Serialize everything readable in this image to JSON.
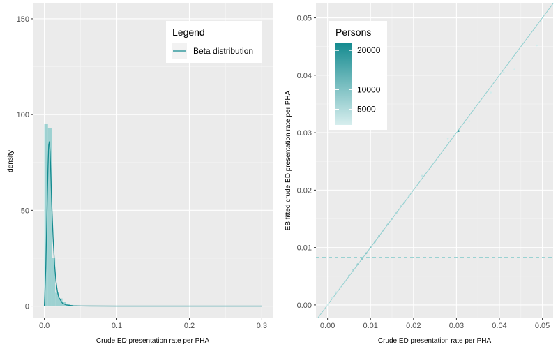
{
  "chart_data": [
    {
      "type": "histogram",
      "xlabel": "Crude ED presentation rate per PHA",
      "ylabel": "density",
      "xlim": [
        -0.015,
        0.315
      ],
      "ylim": [
        -6,
        158
      ],
      "xticks": [
        0.0,
        0.1,
        0.2,
        0.3
      ],
      "xtick_labels": [
        "0.0",
        "0.1",
        "0.2",
        "0.3"
      ],
      "yticks": [
        0,
        50,
        100,
        150
      ],
      "ytick_labels": [
        "0",
        "50",
        "100",
        "150"
      ],
      "grid": true,
      "bin_width": 0.005,
      "bins": [
        {
          "x0": 0.0,
          "x1": 0.005,
          "density": 95
        },
        {
          "x0": 0.005,
          "x1": 0.01,
          "density": 93
        },
        {
          "x0": 0.01,
          "x1": 0.015,
          "density": 25
        },
        {
          "x0": 0.015,
          "x1": 0.02,
          "density": 7
        },
        {
          "x0": 0.02,
          "x1": 0.025,
          "density": 4
        },
        {
          "x0": 0.025,
          "x1": 0.03,
          "density": 2
        },
        {
          "x0": 0.03,
          "x1": 0.035,
          "density": 1
        },
        {
          "x0": 0.035,
          "x1": 0.04,
          "density": 0.6
        },
        {
          "x0": 0.04,
          "x1": 0.045,
          "density": 0.4
        },
        {
          "x0": 0.045,
          "x1": 0.05,
          "density": 0.3
        }
      ],
      "series": [
        {
          "name": "Beta distribution",
          "x": [
            0.0,
            0.002,
            0.004,
            0.005,
            0.006,
            0.007,
            0.008,
            0.009,
            0.01,
            0.012,
            0.014,
            0.016,
            0.018,
            0.02,
            0.025,
            0.03,
            0.04,
            0.05,
            0.1,
            0.2,
            0.3
          ],
          "y": [
            0,
            20,
            55,
            72,
            84,
            86,
            80,
            68,
            55,
            36,
            22,
            13,
            7.5,
            4.5,
            1.5,
            0.6,
            0.15,
            0.05,
            0,
            0,
            0
          ]
        }
      ],
      "legend": {
        "title": "Legend",
        "position": "top-right"
      },
      "colors": {
        "line": "#138a8f",
        "bar": "#9dd1d1",
        "panel": "#ebebeb",
        "grid": "#ffffff"
      }
    },
    {
      "type": "scatter",
      "xlabel": "Crude ED presentation rate per PHA",
      "ylabel": "EB fitted crude ED presentation rate per PHA",
      "xlim": [
        -0.0027,
        0.0525
      ],
      "ylim": [
        -0.0022,
        0.0525
      ],
      "xticks": [
        0.0,
        0.01,
        0.02,
        0.03,
        0.04,
        0.05
      ],
      "xtick_labels": [
        "0.00",
        "0.01",
        "0.02",
        "0.03",
        "0.04",
        "0.05"
      ],
      "yticks": [
        0.0,
        0.01,
        0.02,
        0.03,
        0.04,
        0.05
      ],
      "ytick_labels": [
        "0.00",
        "0.01",
        "0.02",
        "0.03",
        "0.04",
        "0.05"
      ],
      "grid": true,
      "identity_line": true,
      "hline": 0.0083,
      "points": [
        {
          "x": 0.0,
          "y": 0.0,
          "persons": 1000
        },
        {
          "x": 0.001,
          "y": 0.0012,
          "persons": 2500
        },
        {
          "x": 0.002,
          "y": 0.0022,
          "persons": 3000
        },
        {
          "x": 0.003,
          "y": 0.0031,
          "persons": 4000
        },
        {
          "x": 0.004,
          "y": 0.0041,
          "persons": 5000
        },
        {
          "x": 0.005,
          "y": 0.0051,
          "persons": 6000
        },
        {
          "x": 0.006,
          "y": 0.0061,
          "persons": 7000
        },
        {
          "x": 0.007,
          "y": 0.0071,
          "persons": 8000
        },
        {
          "x": 0.008,
          "y": 0.008,
          "persons": 9000
        },
        {
          "x": 0.009,
          "y": 0.009,
          "persons": 9500
        },
        {
          "x": 0.01,
          "y": 0.01,
          "persons": 10000
        },
        {
          "x": 0.011,
          "y": 0.011,
          "persons": 10000
        },
        {
          "x": 0.012,
          "y": 0.012,
          "persons": 9000
        },
        {
          "x": 0.013,
          "y": 0.013,
          "persons": 8000
        },
        {
          "x": 0.014,
          "y": 0.014,
          "persons": 7000
        },
        {
          "x": 0.015,
          "y": 0.015,
          "persons": 6000
        },
        {
          "x": 0.016,
          "y": 0.016,
          "persons": 6000
        },
        {
          "x": 0.017,
          "y": 0.0172,
          "persons": 5000
        },
        {
          "x": 0.018,
          "y": 0.018,
          "persons": 5000
        },
        {
          "x": 0.019,
          "y": 0.019,
          "persons": 4000
        },
        {
          "x": 0.02,
          "y": 0.02,
          "persons": 4000
        },
        {
          "x": 0.022,
          "y": 0.0225,
          "persons": 3000
        },
        {
          "x": 0.025,
          "y": 0.025,
          "persons": 3000
        },
        {
          "x": 0.028,
          "y": 0.029,
          "persons": 2000
        },
        {
          "x": 0.0305,
          "y": 0.0303,
          "persons": 20000
        },
        {
          "x": 0.033,
          "y": 0.032,
          "persons": 1500
        },
        {
          "x": 0.038,
          "y": 0.037,
          "persons": 1500
        },
        {
          "x": 0.041,
          "y": 0.0405,
          "persons": 2000
        },
        {
          "x": 0.0435,
          "y": 0.041,
          "persons": 1500
        },
        {
          "x": 0.0487,
          "y": 0.0452,
          "persons": 1500
        }
      ],
      "legend": {
        "title": "Persons",
        "position": "top-left",
        "values": [
          5000,
          10000,
          20000
        ],
        "labels": [
          "5000",
          "10000",
          "20000"
        ],
        "range": [
          1000,
          22000
        ]
      },
      "colors": {
        "high": "#138a8f",
        "low": "#d7eeee",
        "panel": "#ebebeb",
        "grid": "#ffffff",
        "ref": "#8fcfcf"
      }
    }
  ]
}
